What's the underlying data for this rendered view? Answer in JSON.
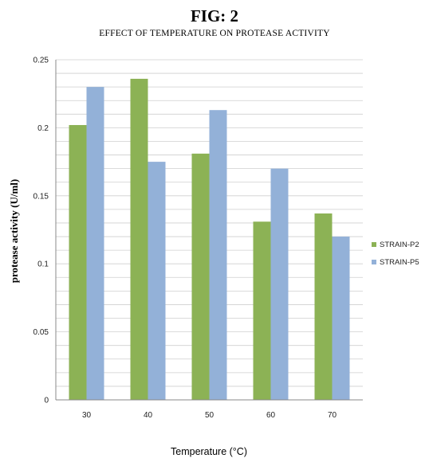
{
  "figure_label": "FIG:  2",
  "chart_data": {
    "type": "bar",
    "title": "EFFECT OF TEMPERATURE  ON PROTEASE ACTIVITY",
    "xlabel": "Temperature (°C)",
    "ylabel": "protease activity (U/ml)",
    "categories": [
      "30",
      "40",
      "50",
      "60",
      "70"
    ],
    "series": [
      {
        "name": "STRAIN-P2",
        "color": "#8cb255",
        "values": [
          0.202,
          0.236,
          0.181,
          0.131,
          0.137
        ]
      },
      {
        "name": "STRAIN-P5",
        "color": "#93b1d8",
        "values": [
          0.23,
          0.175,
          0.213,
          0.17,
          0.12
        ]
      }
    ],
    "ylim": [
      0,
      0.25
    ],
    "yticks": [
      "0",
      "0.05",
      "0.1",
      "0.15",
      "0.2",
      "0.25"
    ],
    "ytick_values": [
      0,
      0.05,
      0.1,
      0.15,
      0.2,
      0.25
    ],
    "minor_gridline_step": 0.01,
    "grid": true,
    "legend_position": "right"
  }
}
